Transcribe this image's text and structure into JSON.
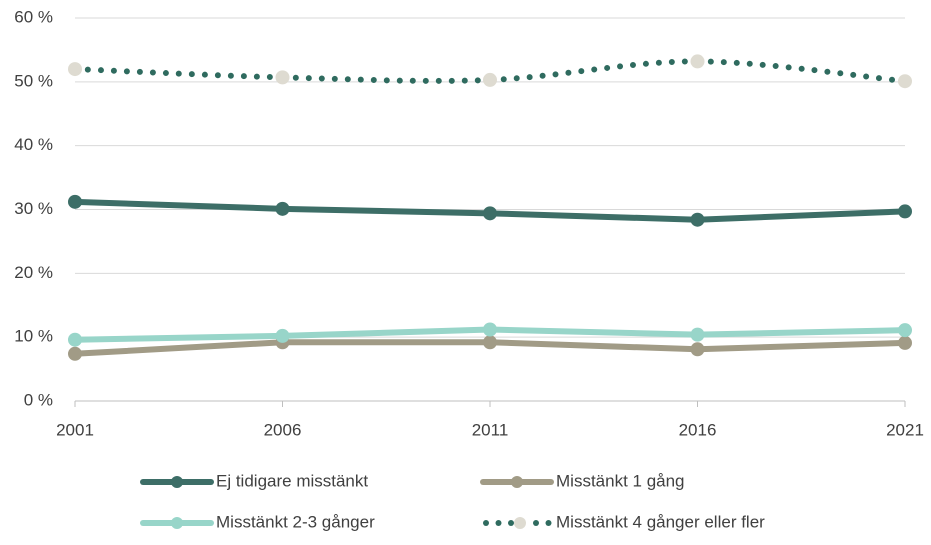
{
  "chart_data": {
    "type": "line",
    "x": [
      2001,
      2006,
      2011,
      2016,
      2021
    ],
    "xlim": [
      2001,
      2021
    ],
    "xticks": [
      2001,
      2006,
      2011,
      2016,
      2021
    ],
    "ylim": [
      0,
      60
    ],
    "yticks": [
      {
        "value": 0,
        "label": "0 %"
      },
      {
        "value": 10,
        "label": "10 %"
      },
      {
        "value": 20,
        "label": "20 %"
      },
      {
        "value": 30,
        "label": "30 %"
      },
      {
        "value": 40,
        "label": "40 %"
      },
      {
        "value": 50,
        "label": "50 %"
      },
      {
        "value": 60,
        "label": "60 %"
      }
    ],
    "grid": true,
    "legend": "bottom",
    "series": [
      {
        "name": "Ej tidigare misstänkt",
        "color": "#3d6e67",
        "values": [
          31.2,
          30.1,
          29.4,
          28.4,
          29.7
        ]
      },
      {
        "name": "Misstänkt 1 gång",
        "color": "#a19b86",
        "values": [
          7.4,
          9.2,
          9.2,
          8.1,
          9.1
        ]
      },
      {
        "name": "Misstänkt 2-3 gånger",
        "color": "#98d5c9",
        "values": [
          9.6,
          10.2,
          11.2,
          10.4,
          11.1
        ]
      },
      {
        "name": "Misstänkt 4 gånger eller fler",
        "color": "#2f6b5f",
        "marker_color": "#dedbd1",
        "style": "dotted",
        "smooth": true,
        "values": [
          52,
          50.7,
          50.3,
          53.2,
          50.1
        ]
      }
    ]
  }
}
